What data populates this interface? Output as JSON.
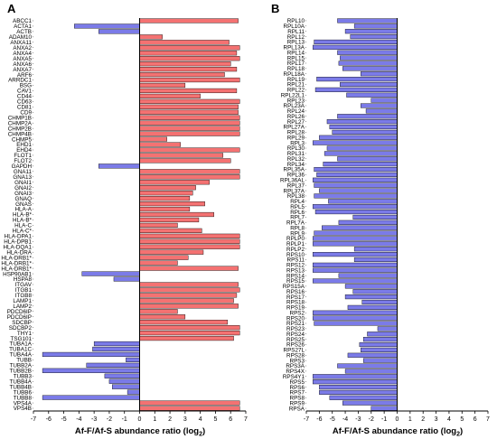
{
  "panels": {
    "a": {
      "letter": "A",
      "xlabel": "Af-F/Af-S abundance ratio (log",
      "xlabel_sub": "2",
      "xlabel_close": ")"
    },
    "b": {
      "letter": "B",
      "xlabel": "Af-F/Af-S abundance ratio (log",
      "xlabel_sub": "2",
      "xlabel_close": ")"
    }
  },
  "colors": {
    "positive": "#f47272",
    "negative": "#7b7be8",
    "bar_stroke": "#000000",
    "axis": "#000000"
  },
  "chart_data": [
    {
      "type": "bar",
      "orientation": "horizontal",
      "panel": "A",
      "xlim": [
        -7,
        7
      ],
      "xticks": [
        -7,
        -6,
        -5,
        -4,
        -3,
        -2,
        -1,
        0,
        1,
        2,
        3,
        4,
        5,
        6,
        7
      ],
      "categories": [
        "ABCC1",
        "ACTA1",
        "ACTB",
        "ADAM10",
        "ANXA11",
        "ANXA2",
        "ANXA4",
        "ANXA5",
        "ANXA6",
        "ANXA7",
        "ARF6",
        "ARRDC1",
        "BSG",
        "CAV1",
        "CD44",
        "CD63",
        "CD81",
        "CD9",
        "CHMP1B",
        "CHMP2A",
        "CHMP2B",
        "CHMP4B",
        "CHMP5",
        "EHD1",
        "EHD4",
        "FLOT1",
        "FLOT2",
        "GAPDH",
        "GNA11",
        "GNA13",
        "GNAI1",
        "GNAI2",
        "GNAI3",
        "GNAQ",
        "GNAS",
        "HLA-A",
        "HLA-B*",
        "HLA-B*",
        "HLA-C",
        "HLA-C*",
        "HLA-DPA1",
        "HLA-DPB1",
        "HLA-DQA1",
        "HLA-DRA",
        "HLA-DRB1*",
        "HLA-DRB1*",
        "HLA-DRB1*",
        "HSP90AB1",
        "HSPA8",
        "ITGAV",
        "ITGB1",
        "ITGB8",
        "LAMP1",
        "LAMP2",
        "PDCD6IP",
        "PDCD6IP",
        "SDCBP",
        "SDCBP2",
        "THY1",
        "TSG101",
        "TUBA1A",
        "TUBA1C",
        "TUBA4A",
        "TUBB",
        "TUBB2A",
        "TUBB2B",
        "TUBB3",
        "TUBB4A",
        "TUBB4B",
        "TUBB6",
        "TUBB8",
        "VPS4A",
        "VPS4B"
      ],
      "values": [
        6.5,
        -4.3,
        -2.7,
        1.5,
        5.9,
        6.6,
        6.4,
        6.6,
        6.0,
        6.4,
        5.6,
        6.6,
        3.0,
        6.4,
        4.0,
        6.6,
        6.5,
        6.5,
        6.6,
        6.6,
        6.6,
        6.6,
        1.8,
        2.7,
        6.6,
        5.5,
        6.0,
        -2.7,
        6.6,
        6.6,
        4.6,
        3.7,
        3.5,
        3.3,
        4.3,
        3.3,
        4.9,
        3.9,
        2.5,
        4.1,
        6.6,
        6.6,
        6.6,
        4.2,
        3.2,
        2.5,
        6.5,
        -3.8,
        -1.7,
        6.5,
        6.6,
        6.4,
        6.2,
        6.5,
        2.5,
        3.0,
        5.8,
        6.6,
        6.6,
        6.2,
        -3.0,
        -3.1,
        -6.4,
        -0.9,
        -3.5,
        -6.4,
        -2.3,
        -2.0,
        -1.8,
        -0.8,
        -6.4,
        6.6,
        6.6
      ]
    },
    {
      "type": "bar",
      "orientation": "horizontal",
      "panel": "B",
      "xlim": [
        -7,
        7
      ],
      "xticks": [
        -7,
        -6,
        -5,
        -4,
        -3,
        -2,
        -1,
        0,
        1,
        2,
        3,
        4,
        5,
        6,
        7
      ],
      "categories": [
        "RPL10",
        "RPL10A",
        "RPL11",
        "RPL12",
        "RPL13",
        "RPL13A",
        "RPL14",
        "RPL15",
        "RPL17",
        "RPL18",
        "RPL18A",
        "RPL19",
        "RPL21",
        "RPL22",
        "RPL22L1",
        "RPL23",
        "RPL23A",
        "RPL24",
        "RPL26",
        "RPL27",
        "RPL27A",
        "RPL28",
        "RPL29",
        "RPL3",
        "RPL30",
        "RPL31",
        "RPL32",
        "RPL34",
        "RPL35A",
        "RPL36",
        "RPL36AL",
        "RPL37",
        "RPL37A",
        "RPL38",
        "RPL4",
        "RPL5",
        "RPL6",
        "RPL7",
        "RPL7A",
        "RPL8",
        "RPL9",
        "RPLP0",
        "RPLP1",
        "RPLP2",
        "RPS10",
        "RPS11",
        "RPS12",
        "RPS13",
        "RPS14",
        "RPS15",
        "RPS15A",
        "RPS16",
        "RPS17",
        "RPS18",
        "RPS19",
        "RPS2",
        "RPS20",
        "RPS21",
        "RPS23",
        "RPS24",
        "RPS25",
        "RPS26",
        "RPS27L",
        "RPS28",
        "RPS3",
        "RPS3A",
        "RPS4X",
        "RPS4Y1",
        "RPS5",
        "RPS6",
        "RPS7",
        "RPS8",
        "RPS9",
        "RPSA"
      ],
      "values": [
        -4.6,
        -3.3,
        -4.0,
        -3.6,
        -6.4,
        -6.5,
        -4.6,
        -4.4,
        -4.5,
        -4.2,
        -2.8,
        -6.2,
        -4.4,
        -6.3,
        -3.9,
        -2.0,
        -2.8,
        -2.4,
        -4.6,
        -5.4,
        -5.2,
        -5.0,
        -6.0,
        -6.5,
        -5.4,
        -5.6,
        -4.6,
        -5.7,
        -6.4,
        -6.2,
        -6.5,
        -6.4,
        -6.0,
        -6.4,
        -5.3,
        -6.5,
        -6.3,
        -3.4,
        -4.5,
        -5.8,
        -6.4,
        -6.5,
        -6.5,
        -3.3,
        -6.5,
        -3.3,
        -6.5,
        -6.5,
        -4.5,
        -6.5,
        -4.0,
        -3.4,
        -4.0,
        -2.7,
        -3.8,
        -6.5,
        -6.5,
        -6.4,
        -1.5,
        -2.3,
        -2.6,
        -2.9,
        -2.8,
        -3.8,
        -2.6,
        -4.6,
        -4.0,
        -6.5,
        -6.5,
        -6.0,
        -6.0,
        -5.2,
        -4.2,
        -2.0
      ]
    }
  ]
}
